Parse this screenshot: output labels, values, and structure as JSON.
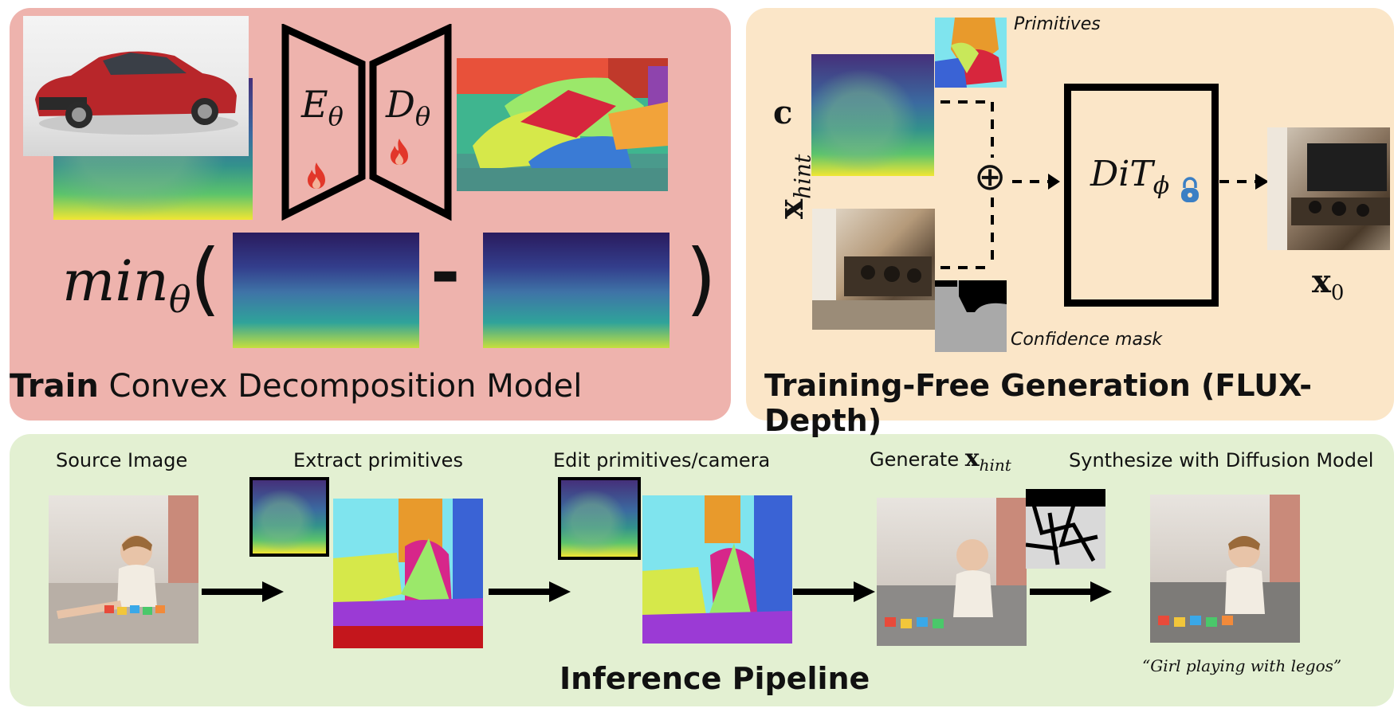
{
  "train": {
    "title_bold": "Train",
    "title_rest": " Convex Decomposition Model",
    "encoder_base": "E",
    "encoder_sub": "θ",
    "decoder_base": "D",
    "decoder_sub": "θ",
    "loss_base": "min",
    "loss_sub": "θ",
    "paren_open": "(",
    "paren_close": ")",
    "minus": "-"
  },
  "generation": {
    "title": "Training-Free Generation (FLUX-Depth)",
    "primitives_label": "Primitives",
    "confidence_label": "Confidence mask",
    "c_label": "c",
    "xhint_base": "x",
    "xhint_sub": "hint",
    "dit_base": "DiT",
    "dit_sub": "ϕ",
    "x0_base": "x",
    "x0_sub": "0",
    "plus_symbol": "⊕"
  },
  "inference": {
    "title": "Inference Pipeline",
    "steps": [
      {
        "label": "Source Image"
      },
      {
        "label": "Extract primitives"
      },
      {
        "label": "Edit primitives/camera"
      },
      {
        "label": "Generate ",
        "math_base": "x",
        "math_sub": "hint"
      },
      {
        "label": "Synthesize with Diffusion Model"
      }
    ],
    "prompt": "“Girl playing with legos”"
  },
  "colors": {
    "train_bg": "#eeb3ad",
    "gen_bg": "#fbe6c8",
    "inference_bg": "#e3f0d2",
    "fire": "#e2372a",
    "lock": "#3b7fc4"
  },
  "icons": [
    "fire-icon",
    "lock-icon",
    "arrow-right-icon"
  ]
}
